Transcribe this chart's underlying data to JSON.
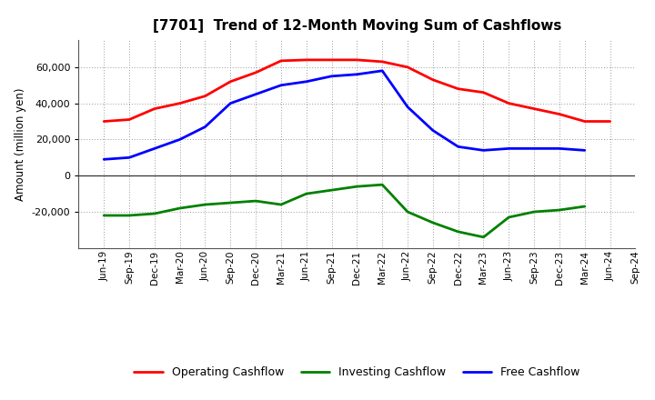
{
  "title": "[7701]  Trend of 12-Month Moving Sum of Cashflows",
  "ylabel": "Amount (million yen)",
  "x_labels": [
    "Jun-19",
    "Sep-19",
    "Dec-19",
    "Mar-20",
    "Jun-20",
    "Sep-20",
    "Dec-20",
    "Mar-21",
    "Jun-21",
    "Sep-21",
    "Dec-21",
    "Mar-22",
    "Jun-22",
    "Sep-22",
    "Dec-22",
    "Mar-23",
    "Jun-23",
    "Sep-23",
    "Dec-23",
    "Mar-24",
    "Jun-24",
    "Sep-24"
  ],
  "operating": [
    30000,
    31000,
    37000,
    40000,
    44000,
    52000,
    57000,
    63500,
    64000,
    64000,
    64000,
    63000,
    60000,
    53000,
    48000,
    46000,
    40000,
    37000,
    34000,
    30000,
    30000,
    null
  ],
  "investing": [
    -22000,
    -22000,
    -21000,
    -18000,
    -16000,
    -15000,
    -14000,
    -16000,
    -10000,
    -8000,
    -6000,
    -5000,
    -20000,
    -26000,
    -31000,
    -34000,
    -23000,
    -20000,
    -19000,
    -17000,
    null,
    null
  ],
  "free": [
    9000,
    10000,
    15000,
    20000,
    27000,
    40000,
    45000,
    50000,
    52000,
    55000,
    56000,
    58000,
    38000,
    25000,
    16000,
    14000,
    15000,
    15000,
    15000,
    14000,
    null,
    null
  ],
  "operating_color": "#ff0000",
  "investing_color": "#008000",
  "free_color": "#0000ff",
  "ylim": [
    -40000,
    75000
  ],
  "yticks": [
    -20000,
    0,
    20000,
    40000,
    60000
  ],
  "bg_color": "#ffffff",
  "grid_color": "#999999"
}
